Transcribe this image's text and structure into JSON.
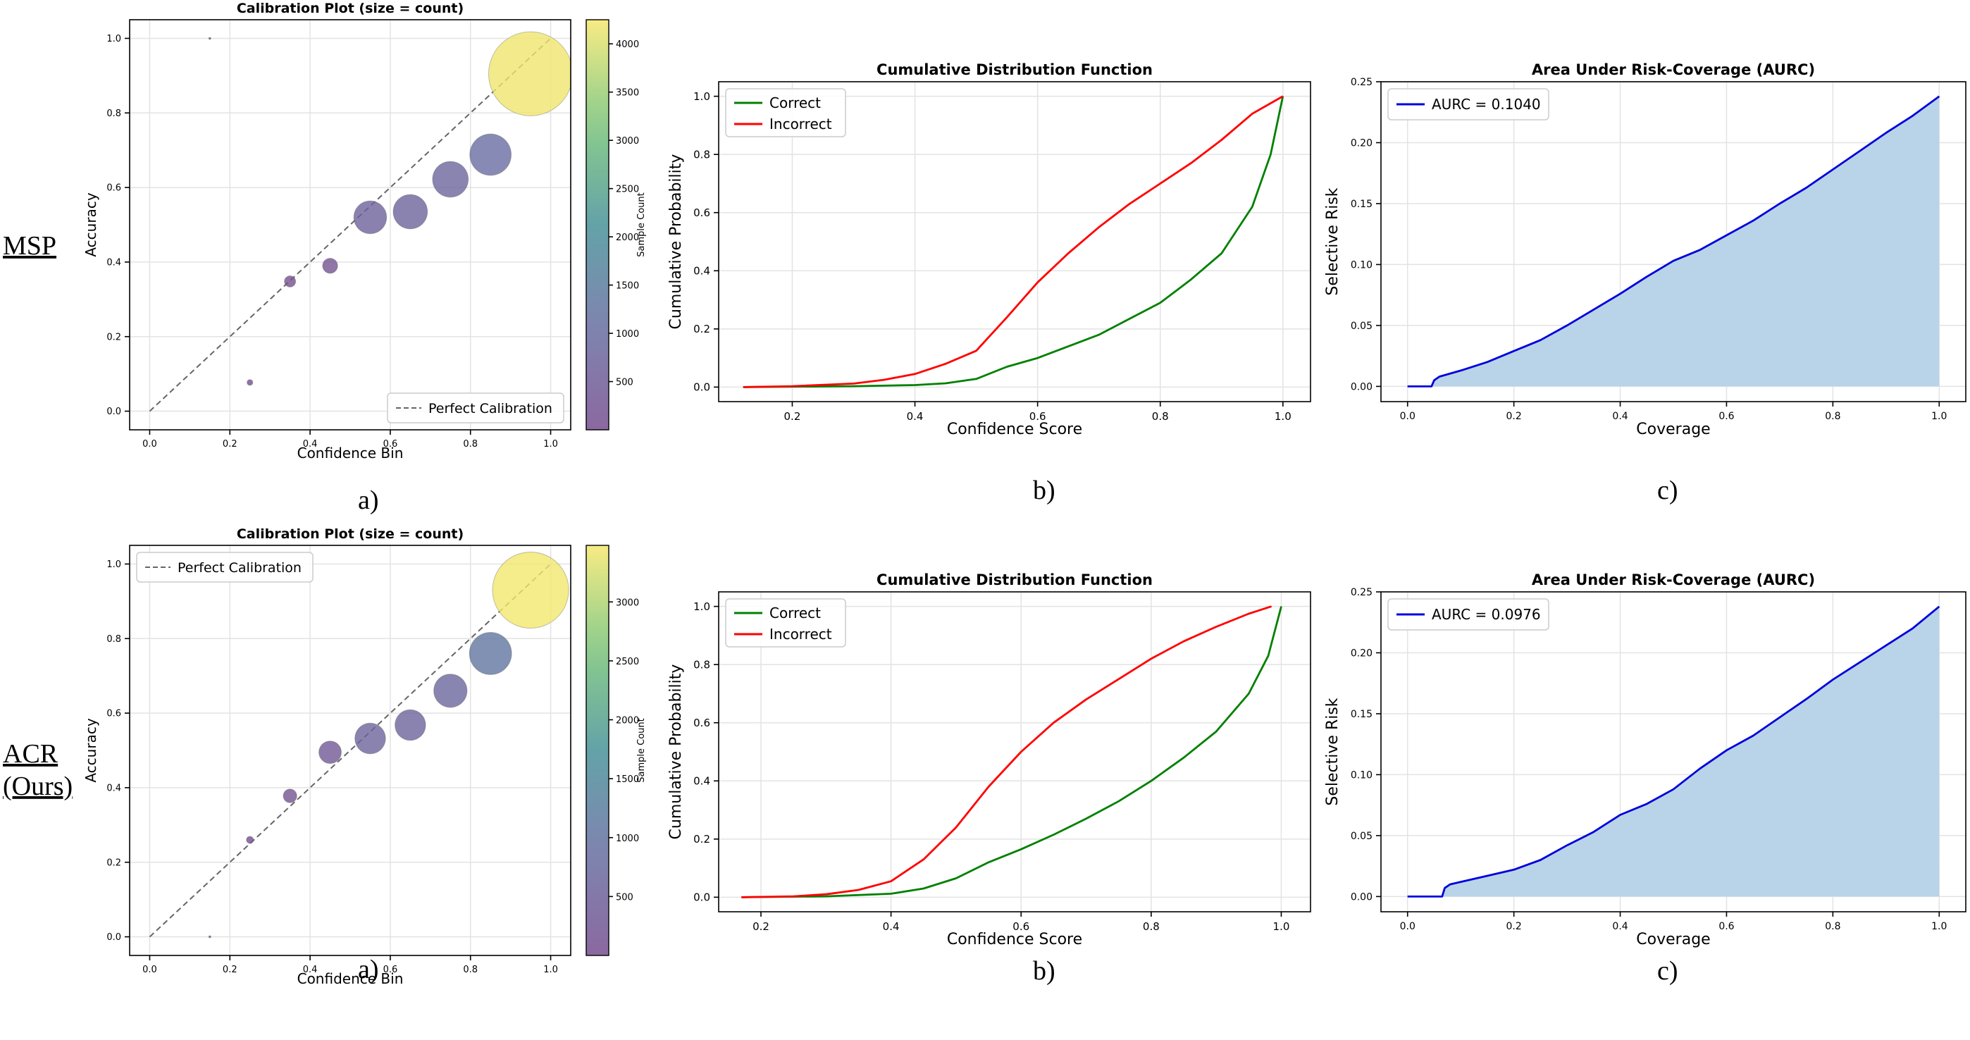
{
  "row_labels": [
    {
      "lines": [
        "MSP"
      ]
    },
    {
      "lines": [
        "ACR",
        "(Ours)"
      ]
    }
  ],
  "panel_labels": [
    "a)",
    "b)",
    "c)"
  ],
  "rows": [
    {
      "calibration": {
        "type": "scatter",
        "title": "Calibration Plot (size = count)",
        "xlabel": "Confidence Bin",
        "ylabel": "Accuracy",
        "xlim": [
          -0.05,
          1.05
        ],
        "ylim": [
          -0.05,
          1.05
        ],
        "xticks": [
          0.0,
          0.2,
          0.4,
          0.6,
          0.8,
          1.0
        ],
        "xtick_labels": [
          "0.0",
          "0.2",
          "0.4",
          "0.6",
          "0.8",
          "1.0"
        ],
        "yticks": [
          0.0,
          0.2,
          0.4,
          0.6,
          0.8,
          1.0
        ],
        "ytick_labels": [
          "0.0",
          "0.2",
          "0.4",
          "0.6",
          "0.8",
          "1.0"
        ],
        "legend": "Perfect Calibration",
        "legend_loc": "lower-right",
        "points": [
          {
            "x": 0.15,
            "y": 1.0,
            "count": 1
          },
          {
            "x": 0.25,
            "y": 0.077,
            "count": 20
          },
          {
            "x": 0.35,
            "y": 0.348,
            "count": 75
          },
          {
            "x": 0.45,
            "y": 0.39,
            "count": 135
          },
          {
            "x": 0.55,
            "y": 0.52,
            "count": 640
          },
          {
            "x": 0.65,
            "y": 0.535,
            "count": 700
          },
          {
            "x": 0.75,
            "y": 0.622,
            "count": 760
          },
          {
            "x": 0.85,
            "y": 0.688,
            "count": 1020
          },
          {
            "x": 0.95,
            "y": 0.905,
            "count": 4200
          }
        ],
        "colorbar": {
          "label": "Sample Count",
          "min": 0,
          "max": 4250,
          "ticks": [
            500,
            1000,
            1500,
            2000,
            2500,
            3000,
            3500,
            4000
          ],
          "tick_labels": [
            "500",
            "1000",
            "1500",
            "2000",
            "2500",
            "3000",
            "3500",
            "4000"
          ]
        }
      },
      "cdf": {
        "type": "line",
        "title": "Cumulative Distribution Function",
        "xlabel": "Confidence Score",
        "ylabel": "Cumulative Probability",
        "xlim": [
          0.08,
          1.045
        ],
        "ylim": [
          -0.05,
          1.05
        ],
        "xticks": [
          0.2,
          0.4,
          0.6,
          0.8,
          1.0
        ],
        "xtick_labels": [
          "0.2",
          "0.4",
          "0.6",
          "0.8",
          "1.0"
        ],
        "yticks": [
          0.0,
          0.2,
          0.4,
          0.6,
          0.8,
          1.0
        ],
        "ytick_labels": [
          "0.0",
          "0.2",
          "0.4",
          "0.6",
          "0.8",
          "1.0"
        ],
        "legend_loc": "top-left",
        "series": [
          {
            "name": "Correct",
            "color": "#008000",
            "x": [
              0.12,
              0.3,
              0.4,
              0.45,
              0.5,
              0.55,
              0.6,
              0.65,
              0.7,
              0.75,
              0.8,
              0.85,
              0.9,
              0.95,
              0.98,
              1.0
            ],
            "y": [
              0.0,
              0.003,
              0.007,
              0.013,
              0.028,
              0.07,
              0.1,
              0.14,
              0.18,
              0.235,
              0.29,
              0.37,
              0.46,
              0.62,
              0.8,
              1.0
            ]
          },
          {
            "name": "Incorrect",
            "color": "#ff0000",
            "x": [
              0.12,
              0.2,
              0.3,
              0.35,
              0.4,
              0.45,
              0.5,
              0.55,
              0.6,
              0.65,
              0.7,
              0.75,
              0.8,
              0.85,
              0.9,
              0.95,
              1.0
            ],
            "y": [
              0.0,
              0.003,
              0.012,
              0.025,
              0.045,
              0.08,
              0.125,
              0.24,
              0.36,
              0.46,
              0.55,
              0.63,
              0.7,
              0.77,
              0.85,
              0.94,
              1.0
            ]
          }
        ]
      },
      "aurc": {
        "type": "area",
        "title": "Area Under Risk-Coverage (AURC)",
        "xlabel": "Coverage",
        "ylabel": "Selective Risk",
        "xlim": [
          -0.05,
          1.05
        ],
        "ylim": [
          -0.0125,
          0.25
        ],
        "xticks": [
          0.0,
          0.2,
          0.4,
          0.6,
          0.8,
          1.0
        ],
        "xtick_labels": [
          "0.0",
          "0.2",
          "0.4",
          "0.6",
          "0.8",
          "1.0"
        ],
        "yticks": [
          0.0,
          0.05,
          0.1,
          0.15,
          0.2,
          0.25
        ],
        "ytick_labels": [
          "0.00",
          "0.05",
          "0.10",
          "0.15",
          "0.20",
          "0.25"
        ],
        "legend": "AURC = 0.1040",
        "legend_loc": "top-left",
        "line_color": "#0000dd",
        "fill_color": "#b9d4e8",
        "x": [
          0.0,
          0.045,
          0.05,
          0.06,
          0.1,
          0.15,
          0.2,
          0.25,
          0.3,
          0.35,
          0.4,
          0.45,
          0.5,
          0.55,
          0.6,
          0.65,
          0.7,
          0.75,
          0.8,
          0.85,
          0.9,
          0.95,
          1.0
        ],
        "y": [
          0.0,
          0.0,
          0.005,
          0.008,
          0.013,
          0.02,
          0.029,
          0.038,
          0.05,
          0.063,
          0.076,
          0.09,
          0.103,
          0.112,
          0.124,
          0.136,
          0.15,
          0.163,
          0.178,
          0.193,
          0.208,
          0.222,
          0.238
        ]
      }
    },
    {
      "calibration": {
        "type": "scatter",
        "title": "Calibration Plot (size = count)",
        "xlabel": "Confidence Bin",
        "ylabel": "Accuracy",
        "xlim": [
          -0.05,
          1.05
        ],
        "ylim": [
          -0.05,
          1.05
        ],
        "xticks": [
          0.0,
          0.2,
          0.4,
          0.6,
          0.8,
          1.0
        ],
        "xtick_labels": [
          "0.0",
          "0.2",
          "0.4",
          "0.6",
          "0.8",
          "1.0"
        ],
        "yticks": [
          0.0,
          0.2,
          0.4,
          0.6,
          0.8,
          1.0
        ],
        "ytick_labels": [
          "0.0",
          "0.2",
          "0.4",
          "0.6",
          "0.8",
          "1.0"
        ],
        "legend": "Perfect Calibration",
        "legend_loc": "top-left",
        "points": [
          {
            "x": 0.15,
            "y": 0.0,
            "count": 1
          },
          {
            "x": 0.25,
            "y": 0.26,
            "count": 30
          },
          {
            "x": 0.35,
            "y": 0.378,
            "count": 110
          },
          {
            "x": 0.45,
            "y": 0.495,
            "count": 300
          },
          {
            "x": 0.55,
            "y": 0.532,
            "count": 560
          },
          {
            "x": 0.65,
            "y": 0.568,
            "count": 560
          },
          {
            "x": 0.75,
            "y": 0.66,
            "count": 660
          },
          {
            "x": 0.85,
            "y": 0.76,
            "count": 1060
          },
          {
            "x": 0.95,
            "y": 0.93,
            "count": 3450
          }
        ],
        "colorbar": {
          "label": "Sample Count",
          "min": 0,
          "max": 3480,
          "ticks": [
            500,
            1000,
            1500,
            2000,
            2500,
            3000
          ],
          "tick_labels": [
            "500",
            "1000",
            "1500",
            "2000",
            "2500",
            "3000"
          ]
        }
      },
      "cdf": {
        "type": "line",
        "title": "Cumulative Distribution Function",
        "xlabel": "Confidence Score",
        "ylabel": "Cumulative Probability",
        "xlim": [
          0.135,
          1.045
        ],
        "ylim": [
          -0.05,
          1.05
        ],
        "xticks": [
          0.2,
          0.4,
          0.6,
          0.8,
          1.0
        ],
        "xtick_labels": [
          "0.2",
          "0.4",
          "0.6",
          "0.8",
          "1.0"
        ],
        "yticks": [
          0.0,
          0.2,
          0.4,
          0.6,
          0.8,
          1.0
        ],
        "ytick_labels": [
          "0.0",
          "0.2",
          "0.4",
          "0.6",
          "0.8",
          "1.0"
        ],
        "legend_loc": "top-left",
        "series": [
          {
            "name": "Correct",
            "color": "#008000",
            "x": [
              0.17,
              0.3,
              0.4,
              0.45,
              0.5,
              0.55,
              0.6,
              0.65,
              0.7,
              0.75,
              0.8,
              0.85,
              0.9,
              0.95,
              0.98,
              1.0
            ],
            "y": [
              0.0,
              0.003,
              0.012,
              0.03,
              0.065,
              0.12,
              0.165,
              0.215,
              0.27,
              0.33,
              0.4,
              0.48,
              0.57,
              0.7,
              0.83,
              1.0
            ]
          },
          {
            "name": "Incorrect",
            "color": "#ff0000",
            "x": [
              0.17,
              0.25,
              0.3,
              0.35,
              0.4,
              0.45,
              0.5,
              0.55,
              0.6,
              0.65,
              0.7,
              0.75,
              0.8,
              0.85,
              0.9,
              0.95,
              0.985
            ],
            "y": [
              0.0,
              0.003,
              0.01,
              0.025,
              0.055,
              0.13,
              0.24,
              0.38,
              0.5,
              0.6,
              0.68,
              0.75,
              0.82,
              0.88,
              0.93,
              0.975,
              1.0
            ]
          }
        ]
      },
      "aurc": {
        "type": "area",
        "title": "Area Under Risk-Coverage (AURC)",
        "xlabel": "Coverage",
        "ylabel": "Selective Risk",
        "xlim": [
          -0.05,
          1.05
        ],
        "ylim": [
          -0.0125,
          0.25
        ],
        "xticks": [
          0.0,
          0.2,
          0.4,
          0.6,
          0.8,
          1.0
        ],
        "xtick_labels": [
          "0.0",
          "0.2",
          "0.4",
          "0.6",
          "0.8",
          "1.0"
        ],
        "yticks": [
          0.0,
          0.05,
          0.1,
          0.15,
          0.2,
          0.25
        ],
        "ytick_labels": [
          "0.00",
          "0.05",
          "0.10",
          "0.15",
          "0.20",
          "0.25"
        ],
        "legend": "AURC = 0.0976",
        "legend_loc": "top-left",
        "line_color": "#0000dd",
        "fill_color": "#b9d4e8",
        "x": [
          0.0,
          0.065,
          0.07,
          0.08,
          0.1,
          0.15,
          0.2,
          0.25,
          0.3,
          0.35,
          0.4,
          0.45,
          0.5,
          0.55,
          0.6,
          0.65,
          0.7,
          0.75,
          0.8,
          0.85,
          0.9,
          0.95,
          1.0
        ],
        "y": [
          0.0,
          0.0,
          0.007,
          0.01,
          0.012,
          0.017,
          0.022,
          0.03,
          0.042,
          0.053,
          0.067,
          0.076,
          0.088,
          0.105,
          0.12,
          0.132,
          0.147,
          0.162,
          0.178,
          0.192,
          0.206,
          0.22,
          0.238
        ]
      }
    }
  ]
}
